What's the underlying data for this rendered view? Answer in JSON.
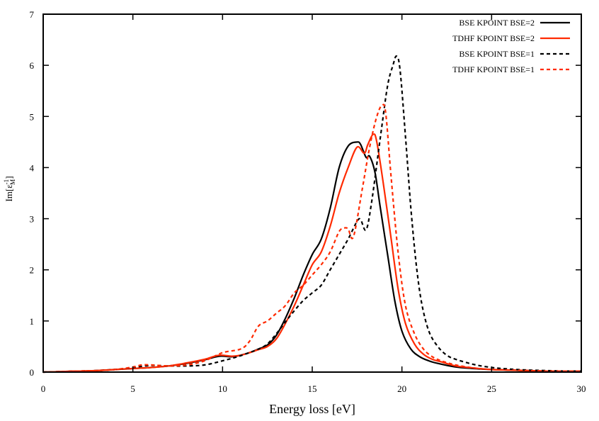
{
  "chart_data": {
    "type": "line",
    "title": "",
    "xlabel": "Energy loss [eV]",
    "ylabel_parts": {
      "base": "Im[",
      "eps": "ε",
      "sup": "-1",
      "sub": "M",
      "close": "]"
    },
    "ylabel": "Im[ε_M^-1]",
    "xlim": [
      0,
      30
    ],
    "ylim": [
      0,
      7
    ],
    "xticks": [
      0,
      5,
      10,
      15,
      20,
      25,
      30
    ],
    "yticks": [
      0,
      1,
      2,
      3,
      4,
      5,
      6,
      7
    ],
    "grid": false,
    "legend_position": "top-right",
    "series": [
      {
        "name": "BSE KPOINT BSE=2",
        "color": "#000000",
        "style": "solid",
        "x": [
          0,
          1,
          2,
          3,
          4,
          5,
          6,
          7,
          8,
          9,
          9.8,
          10.5,
          11,
          11.5,
          12,
          12.5,
          13,
          13.5,
          14,
          14.5,
          15,
          15.5,
          16,
          16.5,
          17,
          17.5,
          17.7,
          18,
          18.2,
          18.5,
          18.8,
          19.2,
          19.6,
          20,
          20.5,
          21,
          21.5,
          22,
          23,
          24,
          25,
          26,
          27,
          28,
          29,
          30
        ],
        "y": [
          0.0,
          0.01,
          0.02,
          0.03,
          0.05,
          0.07,
          0.09,
          0.12,
          0.17,
          0.24,
          0.31,
          0.3,
          0.33,
          0.38,
          0.45,
          0.53,
          0.72,
          1.05,
          1.45,
          1.9,
          2.3,
          2.6,
          3.2,
          4.0,
          4.42,
          4.5,
          4.45,
          4.2,
          4.22,
          3.9,
          3.2,
          2.3,
          1.4,
          0.8,
          0.45,
          0.3,
          0.22,
          0.17,
          0.1,
          0.07,
          0.05,
          0.04,
          0.03,
          0.02,
          0.02,
          0.02
        ]
      },
      {
        "name": "TDHF KPOINT BSE=2",
        "color": "#ff2a00",
        "style": "solid",
        "x": [
          0,
          1,
          2,
          3,
          4,
          5,
          6,
          7,
          8,
          9,
          9.8,
          10.5,
          11,
          11.5,
          12,
          12.5,
          13,
          13.5,
          14,
          14.5,
          15,
          15.5,
          16,
          16.5,
          17,
          17.5,
          17.9,
          18.1,
          18.4,
          18.6,
          19,
          19.4,
          19.8,
          20.2,
          20.7,
          21.2,
          21.7,
          22.2,
          23,
          24,
          25,
          26,
          27,
          28,
          29,
          30
        ],
        "y": [
          0.0,
          0.01,
          0.02,
          0.03,
          0.05,
          0.07,
          0.09,
          0.12,
          0.18,
          0.25,
          0.33,
          0.31,
          0.33,
          0.38,
          0.44,
          0.5,
          0.65,
          0.95,
          1.3,
          1.7,
          2.1,
          2.35,
          2.85,
          3.5,
          4.0,
          4.4,
          4.28,
          4.45,
          4.65,
          4.5,
          3.6,
          2.6,
          1.6,
          0.95,
          0.55,
          0.35,
          0.25,
          0.2,
          0.12,
          0.08,
          0.05,
          0.04,
          0.03,
          0.02,
          0.02,
          0.02
        ]
      },
      {
        "name": "BSE KPOINT BSE=1",
        "color": "#000000",
        "style": "dashed",
        "x": [
          0,
          1,
          2,
          3,
          4,
          5,
          6,
          7,
          8,
          9,
          10,
          11,
          12,
          12.5,
          13,
          13.5,
          14,
          14.5,
          15,
          15.5,
          16,
          16.5,
          17,
          17.5,
          17.7,
          18,
          18.3,
          18.8,
          19.2,
          19.5,
          19.7,
          19.9,
          20.2,
          20.5,
          20.8,
          21.1,
          21.5,
          22,
          22.5,
          23,
          24,
          25,
          26,
          27,
          28,
          29,
          30
        ],
        "y": [
          0.0,
          0.01,
          0.02,
          0.03,
          0.05,
          0.09,
          0.13,
          0.12,
          0.12,
          0.14,
          0.22,
          0.32,
          0.45,
          0.55,
          0.75,
          0.98,
          1.2,
          1.4,
          1.55,
          1.7,
          2.0,
          2.3,
          2.6,
          2.95,
          2.98,
          2.78,
          3.3,
          4.6,
          5.6,
          6.0,
          6.18,
          5.9,
          4.6,
          3.2,
          2.1,
          1.35,
          0.8,
          0.5,
          0.33,
          0.25,
          0.15,
          0.09,
          0.06,
          0.04,
          0.03,
          0.02,
          0.02
        ]
      },
      {
        "name": "TDHF KPOINT BSE=1",
        "color": "#ff2a00",
        "style": "dashed",
        "x": [
          0,
          1,
          2,
          3,
          4,
          5,
          5.5,
          6,
          7,
          8,
          9,
          10,
          11,
          11.5,
          12,
          12.5,
          13,
          13.5,
          14,
          14.5,
          15,
          15.5,
          16,
          16.5,
          16.8,
          17,
          17.3,
          17.8,
          18.2,
          18.6,
          18.9,
          19.1,
          19.4,
          19.8,
          20.2,
          20.7,
          21.2,
          21.7,
          22.2,
          23,
          24,
          25,
          26,
          27,
          28,
          29,
          30
        ],
        "y": [
          0.0,
          0.01,
          0.02,
          0.03,
          0.05,
          0.1,
          0.14,
          0.14,
          0.12,
          0.14,
          0.22,
          0.38,
          0.45,
          0.6,
          0.9,
          1.0,
          1.15,
          1.3,
          1.55,
          1.7,
          1.9,
          2.1,
          2.35,
          2.75,
          2.82,
          2.8,
          2.65,
          3.6,
          4.4,
          5.0,
          5.22,
          5.05,
          3.8,
          2.3,
          1.3,
          0.75,
          0.45,
          0.3,
          0.22,
          0.14,
          0.08,
          0.05,
          0.04,
          0.03,
          0.02,
          0.02,
          0.02
        ]
      }
    ]
  }
}
